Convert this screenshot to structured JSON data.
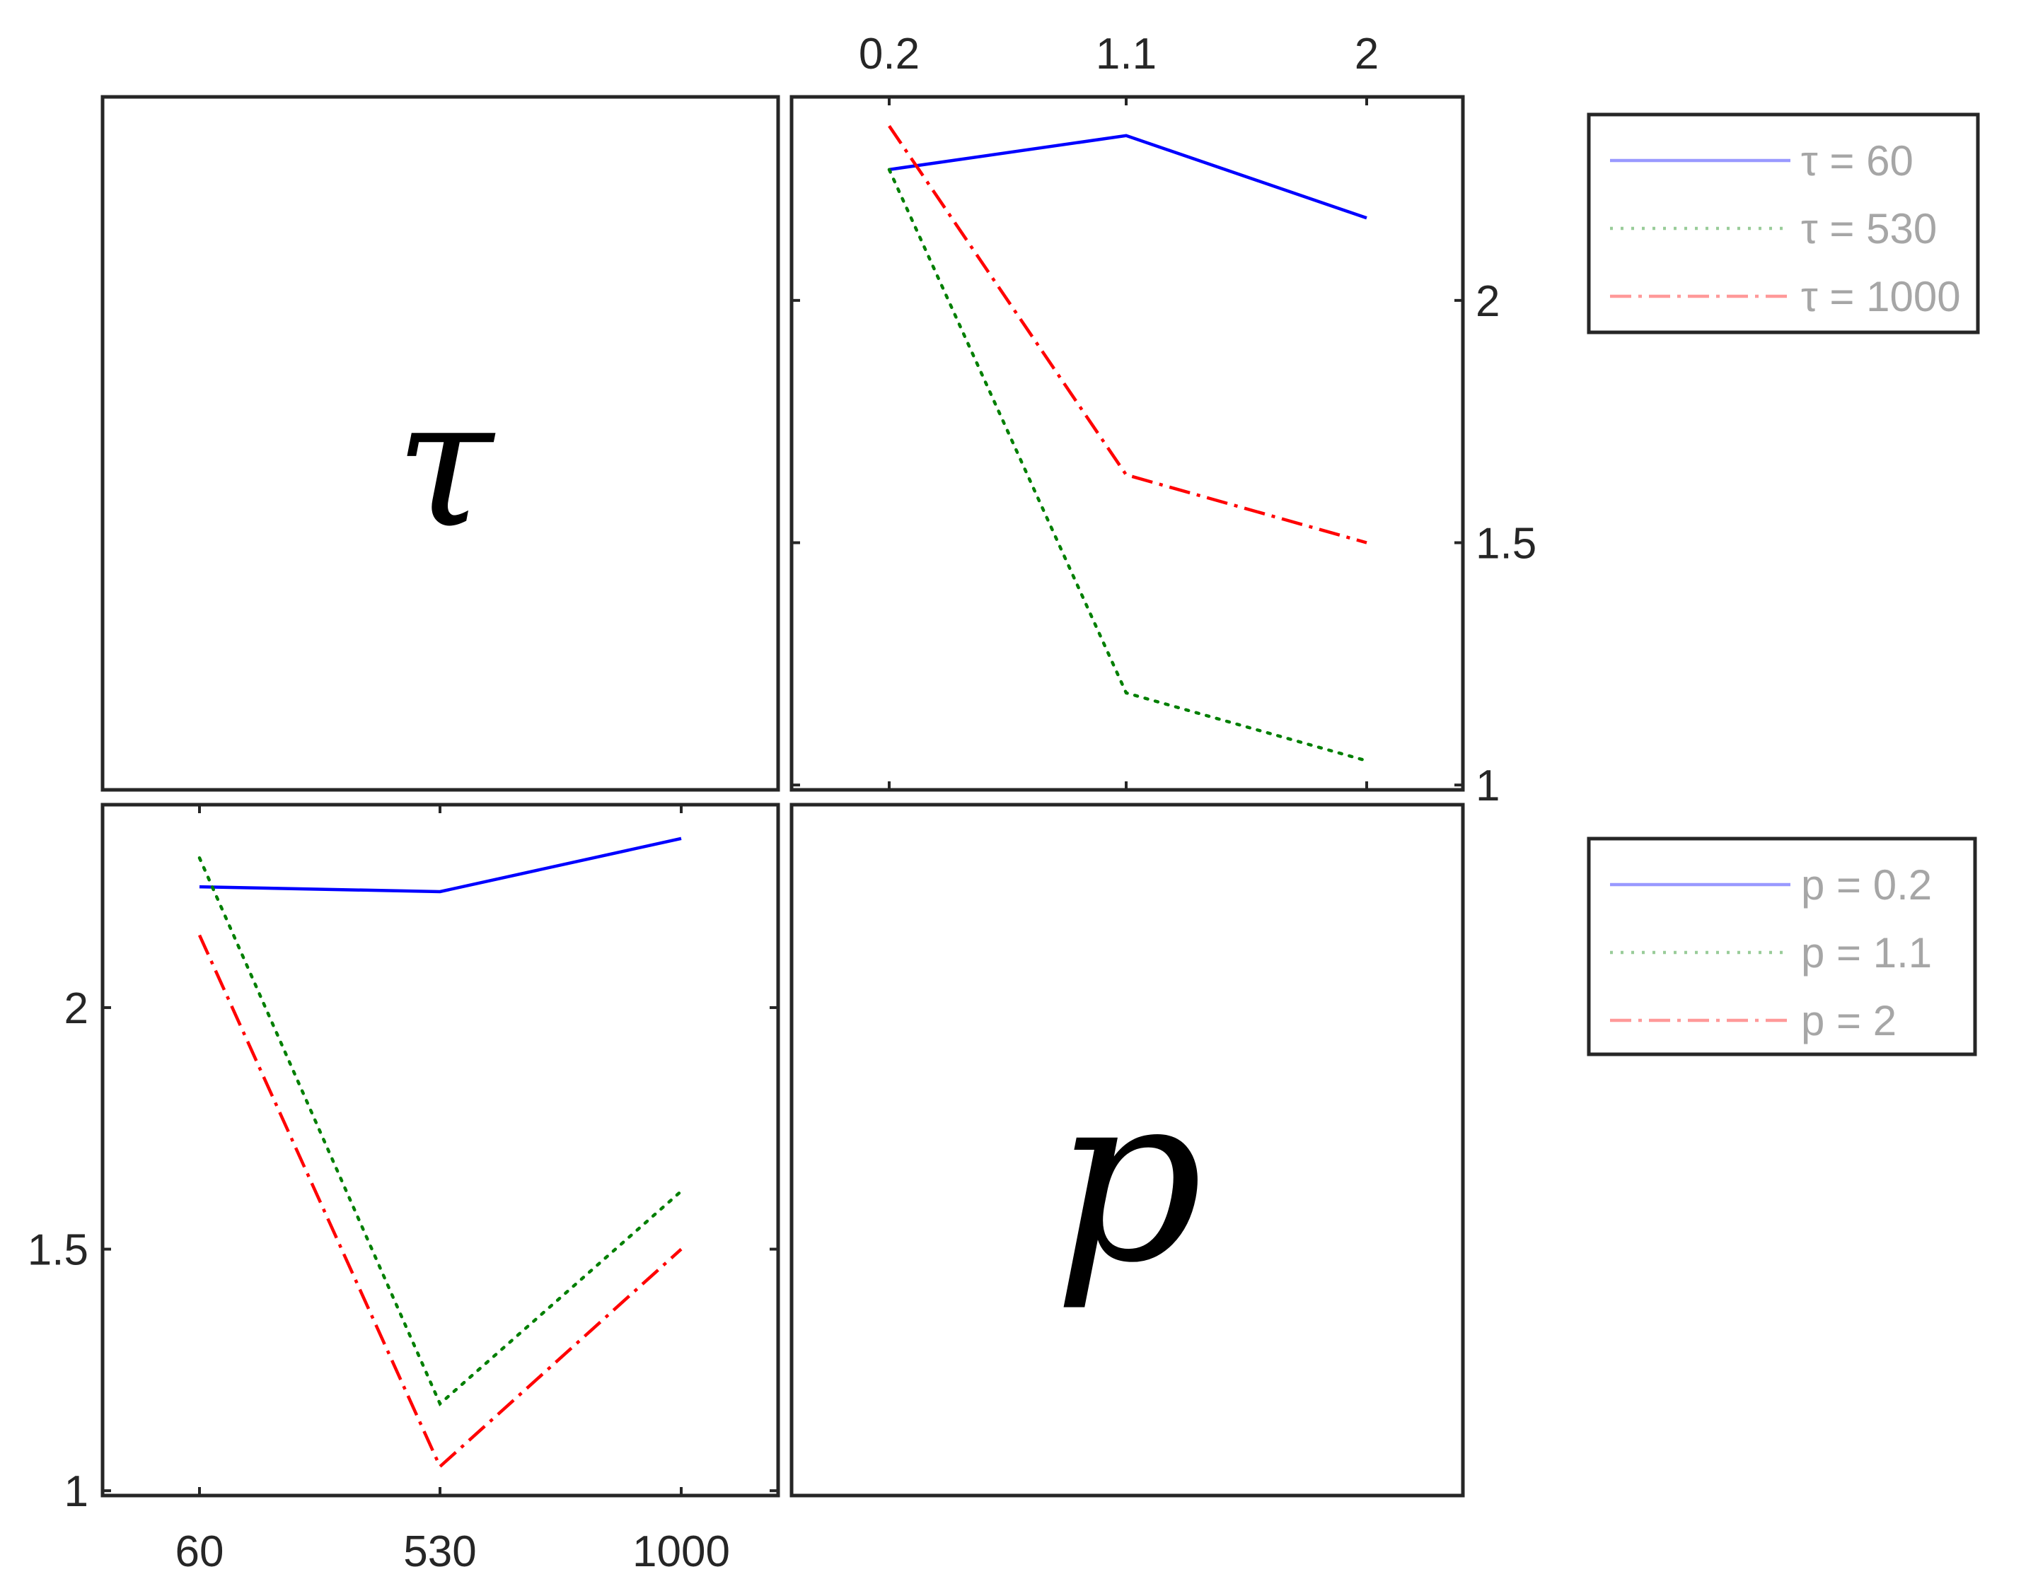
{
  "chart_data": {
    "type": "line",
    "layout": "2x2 plot matrix",
    "diagonal_labels": [
      "τ",
      "p"
    ],
    "variables": {
      "tau": {
        "ticks": [
          60,
          530,
          1000
        ],
        "tick_labels": [
          "60",
          "530",
          "1000"
        ]
      },
      "p": {
        "ticks": [
          0.2,
          1.1,
          2
        ],
        "tick_labels": [
          "0.2",
          "1.1",
          "2"
        ]
      }
    },
    "panels": [
      {
        "position": "top-right",
        "x_variable": "p",
        "x": [
          0.2,
          1.1,
          2
        ],
        "ylim": [
          0.99,
          2.42
        ],
        "y_ticks": [
          1,
          1.5,
          2
        ],
        "y_tick_labels": [
          "1",
          "1.5",
          "2"
        ],
        "x_axis_location": "top",
        "y_axis_location": "right",
        "series": [
          {
            "name": "τ = 60",
            "values": [
              2.27,
              2.34,
              2.17
            ],
            "color": "#0000ff",
            "style": "solid"
          },
          {
            "name": "τ = 530",
            "values": [
              2.27,
              1.19,
              1.05
            ],
            "color": "#007f00",
            "style": "dotted"
          },
          {
            "name": "τ = 1000",
            "values": [
              2.36,
              1.64,
              1.5
            ],
            "color": "#ff0000",
            "style": "dashdot"
          }
        ],
        "legend": [
          "τ = 60",
          "τ = 530",
          "τ = 1000"
        ]
      },
      {
        "position": "bottom-left",
        "x_variable": "tau",
        "x": [
          60,
          530,
          1000
        ],
        "ylim": [
          0.99,
          2.42
        ],
        "y_ticks": [
          1,
          1.5,
          2
        ],
        "y_tick_labels": [
          "1",
          "1.5",
          "2"
        ],
        "x_axis_location": "bottom",
        "y_axis_location": "left",
        "series": [
          {
            "name": "p = 0.2",
            "values": [
              2.25,
              2.24,
              2.35
            ],
            "color": "#0000ff",
            "style": "solid"
          },
          {
            "name": "p = 1.1",
            "values": [
              2.31,
              1.18,
              1.62
            ],
            "color": "#007f00",
            "style": "dotted"
          },
          {
            "name": "p = 2",
            "values": [
              2.15,
              1.05,
              1.5
            ],
            "color": "#ff0000",
            "style": "dashdot"
          }
        ],
        "legend": [
          "p = 0.2",
          "p = 1.1",
          "p = 2"
        ]
      }
    ],
    "grid": false
  }
}
